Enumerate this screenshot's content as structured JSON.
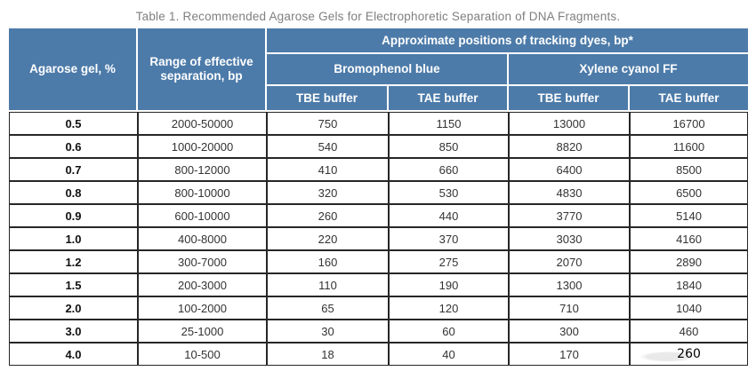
{
  "title": "Table 1. Recommended Agarose Gels for Electrophoretic Separation of DNA Fragments.",
  "colors": {
    "header_bg": "#4d7ba9",
    "header_text": "#ffffff",
    "body_border": "#262626",
    "title_text": "#7f7f7f"
  },
  "table": {
    "header": {
      "agarose_col": "Agarose gel, %",
      "range_col": "Range of effective separation, bp",
      "group_col": "Approximate positions of tracking dyes, bp*",
      "sub_groups": [
        "Bromophenol blue",
        "Xylene cyanol FF"
      ],
      "buffer_cols": [
        "TBE buffer",
        "TAE buffer",
        "TBE buffer",
        "TAE buffer"
      ]
    },
    "rows": [
      [
        "0.5",
        "2000-50000",
        "750",
        "1150",
        "13000",
        "16700"
      ],
      [
        "0.6",
        "1000-20000",
        "540",
        "850",
        "8820",
        "11600"
      ],
      [
        "0.7",
        "800-12000",
        "410",
        "660",
        "6400",
        "8500"
      ],
      [
        "0.8",
        "800-10000",
        "320",
        "530",
        "4830",
        "6500"
      ],
      [
        "0.9",
        "600-10000",
        "260",
        "440",
        "3770",
        "5140"
      ],
      [
        "1.0",
        "400-8000",
        "220",
        "370",
        "3030",
        "4160"
      ],
      [
        "1.2",
        "300-7000",
        "160",
        "275",
        "2070",
        "2890"
      ],
      [
        "1.5",
        "200-3000",
        "110",
        "190",
        "1300",
        "1840"
      ],
      [
        "2.0",
        "100-2000",
        "65",
        "120",
        "710",
        "1040"
      ],
      [
        "3.0",
        "25-1000",
        "30",
        "60",
        "300",
        "460"
      ],
      [
        "4.0",
        "10-500",
        "18",
        "40",
        "170",
        "260"
      ]
    ]
  }
}
